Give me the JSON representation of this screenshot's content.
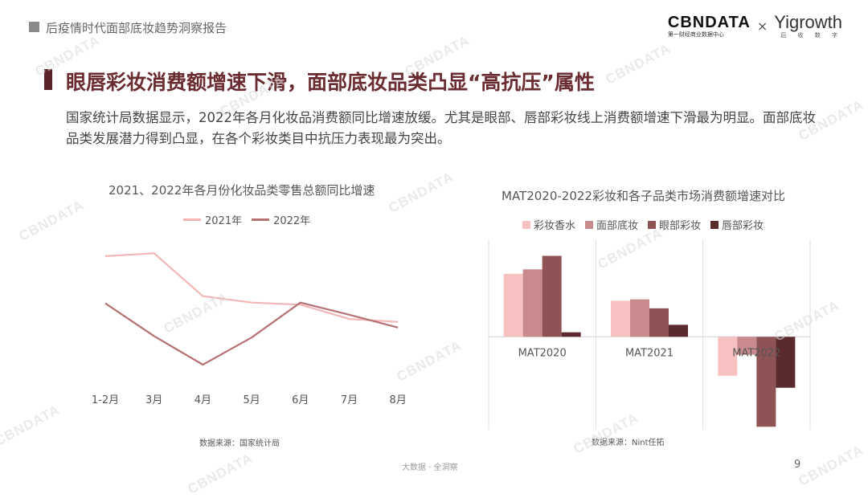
{
  "header": {
    "section_title": "后疫情时代面部底妆趋势洞察报告"
  },
  "logos": {
    "cbn_text": "CBNDATA",
    "cbn_sub": "第一财经商业数据中心",
    "separator": "×",
    "yi_text": "Yigrowth",
    "yi_sub": "后 收 数 字"
  },
  "main_title": "眼唇彩妆消费额增速下滑，面部底妆品类凸显“高抗压”属性",
  "description": "国家统计局数据显示，2022年各月化妆品消费额同比增速放缓。尤其是眼部、唇部彩妆线上消费额增速下滑最为明显。面部底妆品类发展潜力得到凸显，在各个彩妆类目中抗压力表现最为突出。",
  "chart_data": [
    {
      "type": "line",
      "title": "2021、2022年各月份化妆品类零售总额同比增速",
      "categories": [
        "1-2月",
        "3月",
        "4月",
        "5月",
        "6月",
        "7月",
        "8月"
      ],
      "series": [
        {
          "name": "2021年",
          "color": "#f2b6b6",
          "values": [
            40,
            42,
            12,
            7.5,
            6,
            -4,
            -6
          ]
        },
        {
          "name": "2022年",
          "color": "#b57174",
          "values": [
            7,
            -16,
            -36,
            -17,
            7.5,
            -1,
            -10
          ]
        }
      ],
      "ylim": [
        -45,
        45
      ],
      "grid": false,
      "legend_position": "top",
      "source": "数据来源：国家统计局"
    },
    {
      "type": "bar",
      "title": "MAT2020-2022彩妆和各子品类市场消费额增速对比",
      "categories": [
        "MAT2020",
        "MAT2021",
        "MAT2022"
      ],
      "series": [
        {
          "name": "彩妆香水",
          "color": "#f7c1c1",
          "values": [
            42,
            24,
            -26
          ]
        },
        {
          "name": "面部底妆",
          "color": "#c88a8c",
          "values": [
            45,
            25,
            -12
          ]
        },
        {
          "name": "眼部彩妆",
          "color": "#8e5355",
          "values": [
            54,
            19,
            -60
          ]
        },
        {
          "name": "唇部彩妆",
          "color": "#5b2a2c",
          "values": [
            3,
            8,
            -34
          ]
        }
      ],
      "ylim": [
        -62,
        65
      ],
      "grid": true,
      "legend_position": "top",
      "source": "数据来源：Nint任拓"
    }
  ],
  "footer": {
    "center_text": "大数据 · 全洞察",
    "page_number": "9"
  },
  "watermark": "CBNDATA"
}
